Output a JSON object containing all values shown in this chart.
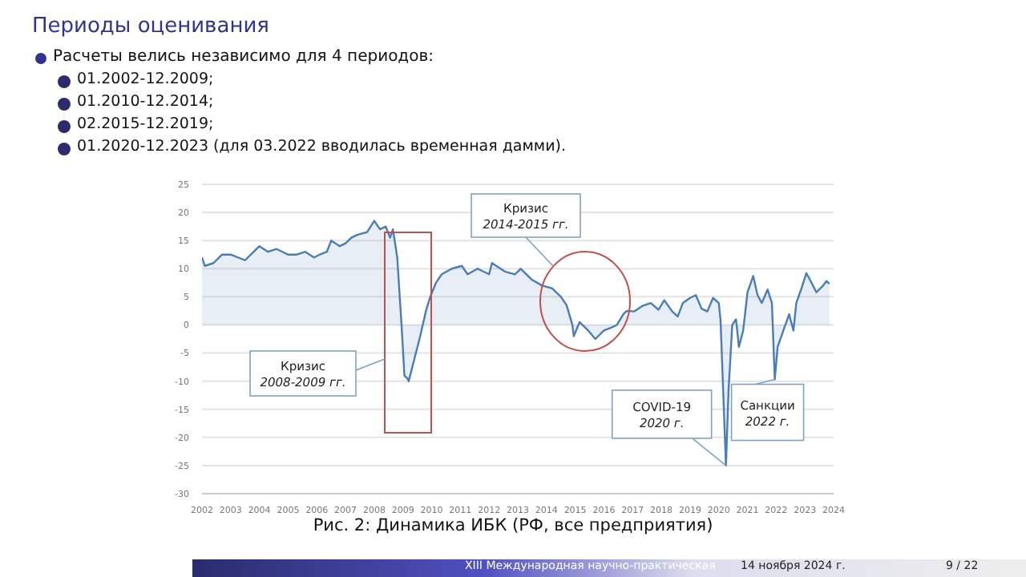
{
  "chart_data": {
    "type": "area",
    "title": "Периоды оценивания",
    "subtitle": "Расчеты велись независимо для 4 периодов:",
    "x": [
      2002.0,
      2002.1,
      2002.4,
      2002.7,
      2003.0,
      2003.5,
      2003.8,
      2004.0,
      2004.3,
      2004.6,
      2005.0,
      2005.3,
      2005.6,
      2005.9,
      2006.1,
      2006.35,
      2006.5,
      2006.8,
      2007.0,
      2007.2,
      2007.4,
      2007.75,
      2008.0,
      2008.2,
      2008.4,
      2008.55,
      2008.65,
      2008.8,
      2008.95,
      2009.05,
      2009.15,
      2009.2,
      2009.4,
      2009.6,
      2009.8,
      2009.95,
      2010.15,
      2010.35,
      2010.7,
      2011.05,
      2011.25,
      2011.6,
      2012.0,
      2012.1,
      2012.55,
      2012.9,
      2013.1,
      2013.5,
      2013.85,
      2014.2,
      2014.5,
      2014.7,
      2014.9,
      2014.95,
      2015.15,
      2015.45,
      2015.7,
      2016.0,
      2016.25,
      2016.45,
      2016.69,
      2016.8,
      2017.06,
      2017.35,
      2017.63,
      2017.9,
      2018.1,
      2018.38,
      2018.57,
      2018.75,
      2019.0,
      2019.2,
      2019.4,
      2019.6,
      2019.8,
      2020.0,
      2020.06,
      2020.25,
      2020.34,
      2020.47,
      2020.6,
      2020.7,
      2020.85,
      2021.0,
      2021.2,
      2021.35,
      2021.5,
      2021.7,
      2021.85,
      2021.95,
      2022.05,
      2022.25,
      2022.45,
      2022.6,
      2022.7,
      2022.9,
      2023.05,
      2023.2,
      2023.4,
      2023.6,
      2023.75,
      2023.85
    ],
    "series": [
      {
        "color": "#4a7db3",
        "values": [
          12,
          10.5,
          11,
          12.5,
          12.5,
          11.5,
          13,
          14,
          13,
          13.5,
          12.5,
          12.5,
          13,
          12,
          12.5,
          13,
          15,
          14,
          14.5,
          15.5,
          16,
          16.5,
          18.5,
          17,
          17.5,
          15.5,
          17,
          12,
          0,
          -9,
          -9.5,
          -10,
          -6,
          -2,
          2.5,
          5,
          7.5,
          9,
          10,
          10.5,
          9,
          10,
          9,
          11,
          9.5,
          9,
          10,
          8,
          7,
          6.5,
          5,
          3.5,
          0,
          -2,
          0.5,
          -1,
          -2.5,
          -1,
          -0.5,
          0,
          2,
          2.5,
          2.4,
          3.4,
          3.9,
          2.7,
          4.4,
          2.4,
          1.5,
          3.9,
          4.8,
          5.3,
          2.9,
          2.4,
          4.8,
          3.9,
          1,
          -25,
          -11.6,
          0,
          1,
          -3.9,
          -1,
          5.8,
          8.7,
          5.3,
          3.9,
          6.3,
          3.9,
          -9.7,
          -3.9,
          -1,
          1.9,
          -1,
          3.9,
          6.8,
          9.2,
          7.8,
          5.8,
          6.8,
          7.8,
          7.3
        ]
      }
    ],
    "xlim": [
      2002,
      2024
    ],
    "xticks": [
      2002,
      2003,
      2004,
      2005,
      2006,
      2007,
      2008,
      2009,
      2010,
      2011,
      2012,
      2013,
      2014,
      2015,
      2016,
      2017,
      2018,
      2019,
      2020,
      2021,
      2022,
      2023,
      2024
    ],
    "ylim": [
      -30,
      25
    ],
    "yticks": [
      -30,
      -25,
      -20,
      -15,
      -10,
      -5,
      0,
      5,
      10,
      15,
      20,
      25
    ],
    "grid": "y",
    "marker": "none",
    "annotations": [
      "01.2002-12.2009;",
      "01.2010-12.2014;",
      "02.2015-12.2019;",
      "01.2020-12.2023 (для 03.2022 вводилась временная дамми).",
      "Рис. 2: Динамика ИБК (РФ, все предприятия)",
      "XIII Международная научно-практическая",
      "14 ноября 2024 г.",
      "9 / 22",
      "Кризис\n2008-2009 гг.",
      "Кризис\n2014-2015 гг.",
      {
        "text": "COVID-19\n2020 г.",
        "x": 2020.25,
        "y": -25
      },
      {
        "text": "Санкции\n2022 г.",
        "x": 2021.95,
        "y": -9.7
      }
    ]
  }
}
